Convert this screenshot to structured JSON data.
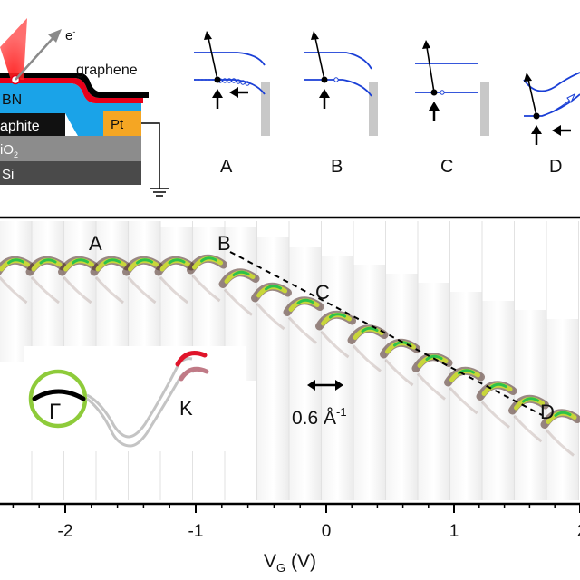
{
  "device": {
    "electron_label": "e",
    "electron_sup": "-",
    "graphene_label": "graphene",
    "bn_label": "BN",
    "graphite_label": "aphite",
    "pt_label": "Pt",
    "sio2_label": "iO",
    "sio2_sub": "2",
    "si_label": "Si"
  },
  "insets": [
    {
      "label": "A"
    },
    {
      "label": "B"
    },
    {
      "label": "C"
    },
    {
      "label": "D"
    }
  ],
  "main": {
    "panel_labels": {
      "A": "A",
      "B": "B",
      "C": "C",
      "D": "D"
    },
    "scale_value": "0.6 Å",
    "scale_sup": "-1",
    "gamma_label": "Γ",
    "k_label": "K",
    "x_ticks": [
      "-2",
      "-1",
      "0",
      "1",
      "2"
    ],
    "x_axis": {
      "var": "V",
      "sub": "G",
      "unit": " (V)"
    }
  },
  "colors": {
    "band_blue": "#1a3fd6",
    "laser_red": "#e8001a",
    "bn_blue": "#1aa3e8",
    "pt_orange": "#f5a623",
    "sio2_gray": "#8c8c8c",
    "si_gray": "#4a4a4a",
    "circle_green": "#8ecb3a",
    "band_red": "#e0142a",
    "band_pink": "#c07a86"
  }
}
